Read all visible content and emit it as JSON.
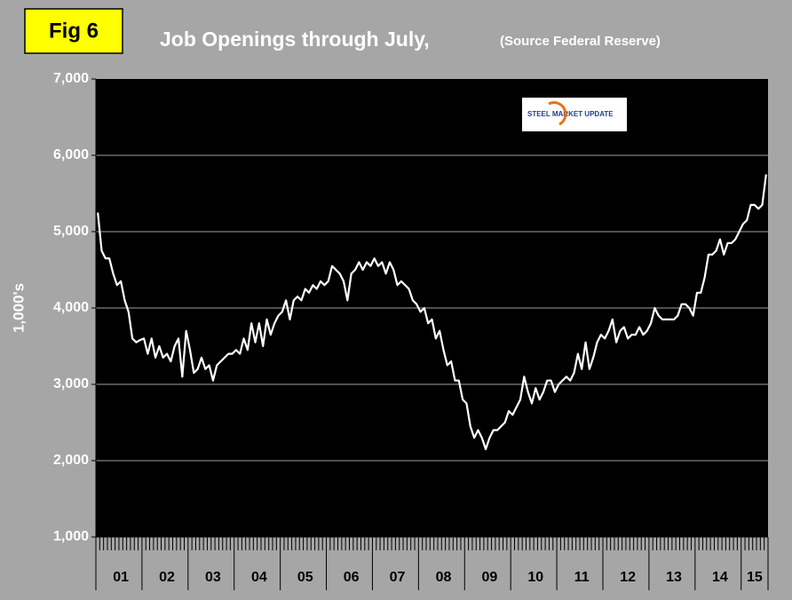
{
  "chart_data": {
    "type": "line",
    "badge": "Fig 6",
    "title": "Job Openings through July,",
    "subtitle": "(Source Federal Reserve)",
    "logo": "STEEL MARKET UPDATE",
    "y_label": "1,000's",
    "ylim": [
      1000,
      7000
    ],
    "yticks": [
      {
        "value": 1000,
        "label": "1,000"
      },
      {
        "value": 2000,
        "label": "2,000"
      },
      {
        "value": 3000,
        "label": "3,000"
      },
      {
        "value": 4000,
        "label": "4,000"
      },
      {
        "value": 5000,
        "label": "5,000"
      },
      {
        "value": 6000,
        "label": "6,000"
      },
      {
        "value": 7000,
        "label": "7,000"
      }
    ],
    "grid": true,
    "color": "#ffffff",
    "categories": [
      null,
      null,
      null,
      null,
      null,
      null,
      "01",
      null,
      null,
      null,
      null,
      null,
      null,
      null,
      null,
      null,
      null,
      null,
      "02",
      null,
      null,
      null,
      null,
      null,
      null,
      null,
      null,
      null,
      null,
      null,
      "03",
      null,
      null,
      null,
      null,
      null,
      null,
      null,
      null,
      null,
      null,
      null,
      "04",
      null,
      null,
      null,
      null,
      null,
      null,
      null,
      null,
      null,
      null,
      null,
      "05",
      null,
      null,
      null,
      null,
      null,
      null,
      null,
      null,
      null,
      null,
      null,
      "06",
      null,
      null,
      null,
      null,
      null,
      null,
      null,
      null,
      null,
      null,
      null,
      "07",
      null,
      null,
      null,
      null,
      null,
      null,
      null,
      null,
      null,
      null,
      null,
      "08",
      null,
      null,
      null,
      null,
      null,
      null,
      null,
      null,
      null,
      null,
      null,
      "09",
      null,
      null,
      null,
      null,
      null,
      null,
      null,
      null,
      null,
      null,
      null,
      "10",
      null,
      null,
      null,
      null,
      null,
      null,
      null,
      null,
      null,
      null,
      null,
      "11",
      null,
      null,
      null,
      null,
      null,
      null,
      null,
      null,
      null,
      null,
      null,
      "12",
      null,
      null,
      null,
      null,
      null,
      null,
      null,
      null,
      null,
      null,
      null,
      "13",
      null,
      null,
      null,
      null,
      null,
      null,
      null,
      null,
      null,
      null,
      null,
      "14",
      null,
      null,
      null,
      null,
      null,
      null,
      null,
      null,
      "15",
      null,
      null,
      null
    ],
    "values": [
      5250,
      4750,
      4650,
      4650,
      4450,
      4300,
      4350,
      4100,
      3950,
      3600,
      3550,
      3580,
      3600,
      3400,
      3600,
      3350,
      3500,
      3350,
      3400,
      3300,
      3500,
      3600,
      3100,
      3700,
      3450,
      3150,
      3200,
      3350,
      3200,
      3250,
      3050,
      3250,
      3300,
      3350,
      3400,
      3400,
      3450,
      3400,
      3600,
      3450,
      3800,
      3550,
      3800,
      3500,
      3850,
      3650,
      3800,
      3900,
      3950,
      4100,
      3850,
      4100,
      4150,
      4100,
      4250,
      4200,
      4300,
      4250,
      4350,
      4300,
      4350,
      4550,
      4500,
      4450,
      4350,
      4100,
      4450,
      4500,
      4600,
      4500,
      4600,
      4550,
      4650,
      4550,
      4600,
      4450,
      4600,
      4500,
      4300,
      4350,
      4300,
      4250,
      4100,
      4050,
      3950,
      4000,
      3800,
      3850,
      3600,
      3700,
      3450,
      3250,
      3300,
      3050,
      3050,
      2800,
      2750,
      2450,
      2300,
      2400,
      2300,
      2150,
      2300,
      2400,
      2400,
      2450,
      2500,
      2650,
      2600,
      2700,
      2800,
      3100,
      2900,
      2750,
      2950,
      2800,
      2900,
      3050,
      3050,
      2900,
      3000,
      3050,
      3100,
      3050,
      3150,
      3400,
      3200,
      3550,
      3200,
      3350,
      3550,
      3650,
      3600,
      3700,
      3850,
      3550,
      3700,
      3750,
      3600,
      3650,
      3650,
      3750,
      3650,
      3700,
      3800,
      4000,
      3900,
      3850,
      3850,
      3850,
      3850,
      3900,
      4050,
      4050,
      4000,
      3900,
      4200,
      4200,
      4400,
      4700,
      4700,
      4750,
      4900,
      4700,
      4850,
      4850,
      4900,
      5000,
      5100,
      5150,
      5350,
      5350,
      5300,
      5350,
      5750
    ]
  }
}
